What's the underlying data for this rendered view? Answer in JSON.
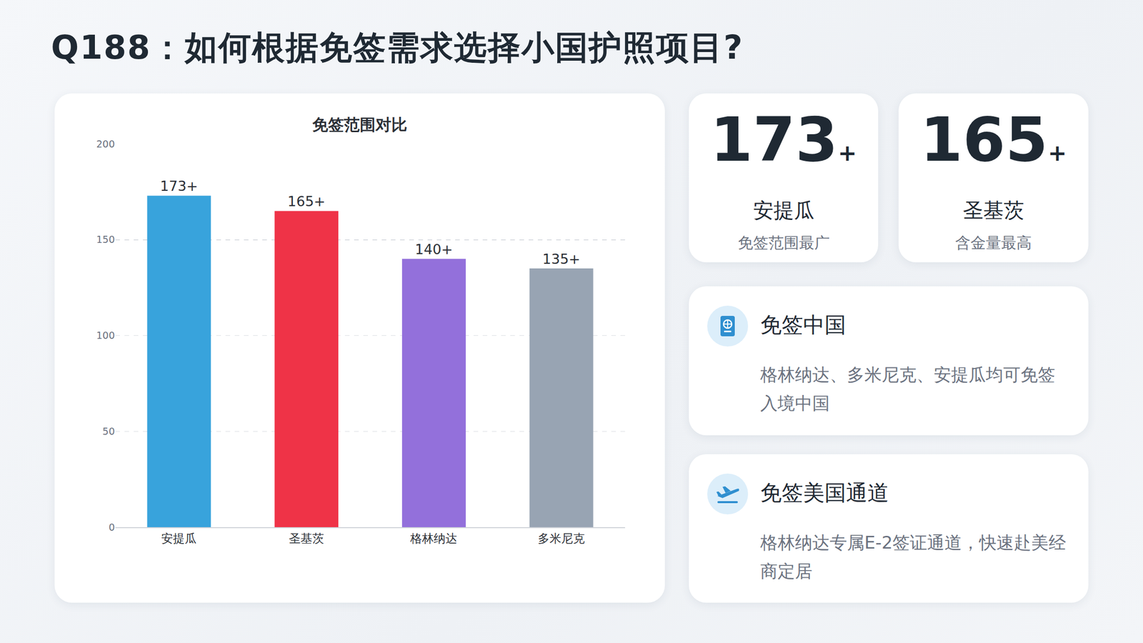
{
  "page": {
    "title": "Q188：如何根据免签需求选择小国护照项目?",
    "stats": [
      {
        "number": "173",
        "suffix": "+",
        "name": "安提瓜",
        "desc": "免签范围最广"
      },
      {
        "number": "165",
        "suffix": "+",
        "name": "圣基茨",
        "desc": "含金量最高"
      }
    ],
    "info": [
      {
        "heading": "免签中国",
        "text": "格林纳达、多米尼克、安提瓜均可免签入境中国"
      },
      {
        "heading": "免签美国通道",
        "text": "格林纳达专属E-2签证通道，快速赴美经商定居"
      }
    ]
  },
  "chart_data": {
    "type": "bar",
    "title": "免签范围对比",
    "categories": [
      "安提瓜",
      "圣基茨",
      "格林纳达",
      "多米尼克"
    ],
    "values": [
      173,
      165,
      140,
      135
    ],
    "value_labels": [
      "173+",
      "165+",
      "140+",
      "135+"
    ],
    "colors": [
      "#38a3dc",
      "#ef3347",
      "#9370db",
      "#98a4b3"
    ],
    "ylim": [
      0,
      200
    ],
    "yticks": [
      0,
      50,
      100,
      150,
      200
    ],
    "grid": true,
    "data_labels": true
  }
}
